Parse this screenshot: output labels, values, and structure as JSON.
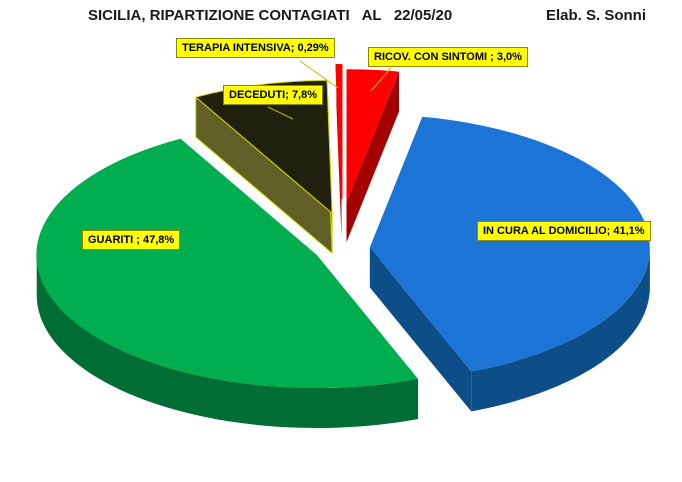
{
  "header": {
    "title": "SICILIA, RIPARTIZIONE CONTAGIATI   AL   22/05/20",
    "credit": "Elab. S. Sonni"
  },
  "chart_data": {
    "type": "pie",
    "style": "3d-exploded",
    "title": "SICILIA, RIPARTIZIONE CONTAGIATI AL 22/05/20",
    "credit": "Elab. S. Sonni",
    "unit": "%",
    "direction": "clockwise",
    "start_angle_deg": 0,
    "legend": "none",
    "label_style": "yellow-boxes",
    "slices": [
      {
        "name": "RICOV. CON SINTOMI",
        "value": 3.0,
        "label": "RICOV. CON SINTOMI ; 3,0%",
        "color": "#FE0000",
        "side_color": "#A40000",
        "explode": 48
      },
      {
        "name": "IN CURA AL DOMICILIO",
        "value": 41.1,
        "label": "IN CURA AL DOMICILIO; 41,1%",
        "color": "#1B74D6",
        "side_color": "#0D4E88",
        "explode": 28
      },
      {
        "name": "GUARITI",
        "value": 47.8,
        "label": "GUARITI ; 47,8%",
        "color": "#00AD4F",
        "side_color": "#006E34",
        "explode": 28
      },
      {
        "name": "DECEDUTI",
        "value": 7.8,
        "label": "DECEDUTI; 7,8%",
        "color": "#20200E",
        "side_color": "#5F5F26",
        "explode": 38,
        "outline": "#D6D600"
      },
      {
        "name": "TERAPIA INTENSIVA",
        "value": 0.29,
        "label": "TERAPIA INTENSIVA; 0,29%",
        "color": "#FE0000",
        "side_color": "#A40000",
        "explode": 52
      }
    ]
  }
}
